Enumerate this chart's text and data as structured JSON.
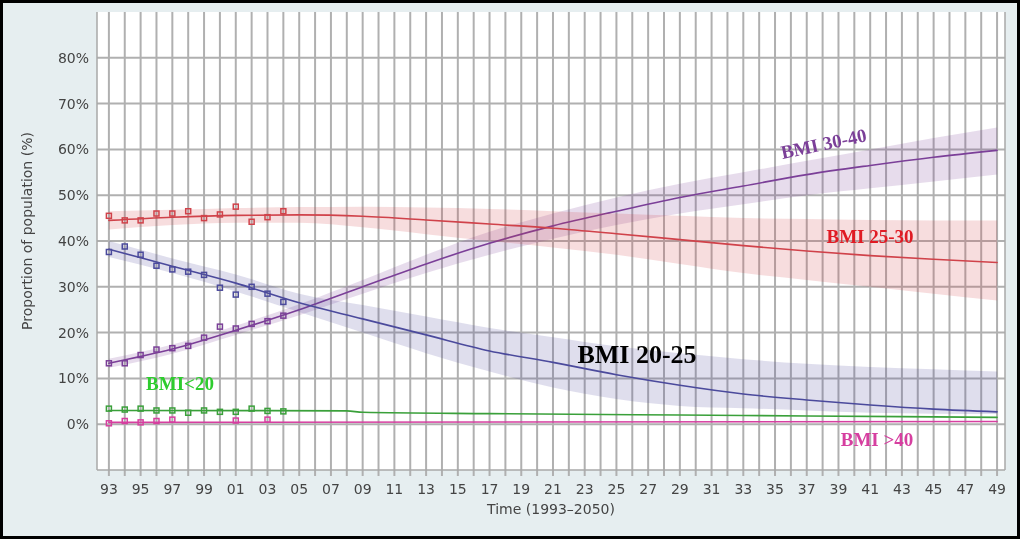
{
  "chart_data": {
    "type": "line",
    "xlabel": "Time (1993–2050)",
    "ylabel": "Proportion of population (%)",
    "xlim": [
      1992.25,
      2049.5
    ],
    "ylim": [
      -10,
      90
    ],
    "xticks": [
      {
        "value": 1993,
        "label": "93"
      },
      {
        "value": 1994,
        "label": null
      },
      {
        "value": 1995,
        "label": "95"
      },
      {
        "value": 1996,
        "label": null
      },
      {
        "value": 1997,
        "label": "97"
      },
      {
        "value": 1998,
        "label": null
      },
      {
        "value": 1999,
        "label": "99"
      },
      {
        "value": 2000,
        "label": null
      },
      {
        "value": 2001,
        "label": "01"
      },
      {
        "value": 2002,
        "label": null
      },
      {
        "value": 2003,
        "label": "03"
      },
      {
        "value": 2004,
        "label": null
      },
      {
        "value": 2005,
        "label": "05"
      },
      {
        "value": 2006,
        "label": null
      },
      {
        "value": 2007,
        "label": "07"
      },
      {
        "value": 2008,
        "label": null
      },
      {
        "value": 2009,
        "label": "09"
      },
      {
        "value": 2010,
        "label": null
      },
      {
        "value": 2011,
        "label": "11"
      },
      {
        "value": 2012,
        "label": null
      },
      {
        "value": 2013,
        "label": "13"
      },
      {
        "value": 2014,
        "label": null
      },
      {
        "value": 2015,
        "label": "15"
      },
      {
        "value": 2016,
        "label": null
      },
      {
        "value": 2017,
        "label": "17"
      },
      {
        "value": 2018,
        "label": null
      },
      {
        "value": 2019,
        "label": "19"
      },
      {
        "value": 2020,
        "label": null
      },
      {
        "value": 2021,
        "label": "21"
      },
      {
        "value": 2022,
        "label": null
      },
      {
        "value": 2023,
        "label": "23"
      },
      {
        "value": 2024,
        "label": null
      },
      {
        "value": 2025,
        "label": "25"
      },
      {
        "value": 2026,
        "label": null
      },
      {
        "value": 2027,
        "label": "27"
      },
      {
        "value": 2028,
        "label": null
      },
      {
        "value": 2029,
        "label": "29"
      },
      {
        "value": 2030,
        "label": null
      },
      {
        "value": 2031,
        "label": "31"
      },
      {
        "value": 2032,
        "label": null
      },
      {
        "value": 2033,
        "label": "33"
      },
      {
        "value": 2034,
        "label": null
      },
      {
        "value": 2035,
        "label": "35"
      },
      {
        "value": 2036,
        "label": null
      },
      {
        "value": 2037,
        "label": "37"
      },
      {
        "value": 2038,
        "label": null
      },
      {
        "value": 2039,
        "label": "39"
      },
      {
        "value": 2040,
        "label": null
      },
      {
        "value": 2041,
        "label": "41"
      },
      {
        "value": 2042,
        "label": null
      },
      {
        "value": 2043,
        "label": "43"
      },
      {
        "value": 2044,
        "label": null
      },
      {
        "value": 2045,
        "label": "45"
      },
      {
        "value": 2046,
        "label": null
      },
      {
        "value": 2047,
        "label": "47"
      },
      {
        "value": 2048,
        "label": null
      },
      {
        "value": 2049,
        "label": "49"
      }
    ],
    "yticks": [
      {
        "value": 0,
        "label": "0%"
      },
      {
        "value": 10,
        "label": "10%"
      },
      {
        "value": 20,
        "label": "20%"
      },
      {
        "value": 30,
        "label": "30%"
      },
      {
        "value": 40,
        "label": "40%"
      },
      {
        "value": 50,
        "label": "50%"
      },
      {
        "value": 60,
        "label": "60%"
      },
      {
        "value": 70,
        "label": "70%"
      },
      {
        "value": 80,
        "label": "80%"
      }
    ],
    "grid": true,
    "marker": "none",
    "line_style": "solid",
    "series": [
      {
        "name": "BMI 30-40",
        "color": "#7b3f98",
        "x": [
          1993,
          1997,
          2001,
          2005,
          2009,
          2013,
          2017,
          2021,
          2025,
          2029,
          2033,
          2037,
          2041,
          2045,
          2049
        ],
        "values": [
          13.3,
          16.4,
          20.5,
          25,
          30,
          35,
          39.5,
          43.3,
          46.5,
          49.5,
          52,
          54.5,
          56.5,
          58.3,
          59.8
        ],
        "lower": [
          12.3,
          15.4,
          19.5,
          23.8,
          28.5,
          33,
          37,
          40.5,
          43.5,
          46,
          48,
          50,
          51.5,
          53,
          54.5
        ],
        "upper": [
          14.3,
          17.4,
          21.5,
          26.2,
          31.5,
          37,
          42,
          46,
          49.5,
          52.5,
          55,
          57.5,
          60,
          62.5,
          64.8
        ]
      },
      {
        "name": "BMI 25-30",
        "color": "#d0424a",
        "x": [
          1993,
          1997,
          2001,
          2005,
          2009,
          2013,
          2017,
          2021,
          2025,
          2029,
          2033,
          2037,
          2041,
          2045,
          2049
        ],
        "values": [
          44.5,
          45.2,
          45.6,
          45.7,
          45.4,
          44.6,
          43.7,
          42.8,
          41.6,
          40.3,
          39,
          37.8,
          36.8,
          36,
          35.3
        ],
        "lower": [
          42.5,
          43.5,
          44,
          44,
          43,
          41.5,
          40,
          38.6,
          37,
          35,
          33,
          31.5,
          30,
          28.5,
          27
        ],
        "upper": [
          46.5,
          46.8,
          47.2,
          47.4,
          47.5,
          47.3,
          47,
          46.5,
          46,
          45.5,
          45,
          44.8,
          44.6,
          44.5,
          44.5
        ]
      },
      {
        "name": "BMI 20-25",
        "color": "#4b4a9c",
        "x": [
          1993,
          1997,
          2001,
          2005,
          2009,
          2013,
          2017,
          2021,
          2025,
          2029,
          2033,
          2037,
          2041,
          2045,
          2049
        ],
        "values": [
          38.2,
          34.5,
          30.8,
          26.5,
          23,
          19.5,
          16,
          13.5,
          10.8,
          8.5,
          6.6,
          5.3,
          4.2,
          3.3,
          2.7
        ],
        "lower": [
          36.5,
          33,
          29,
          24.5,
          20,
          15.5,
          11.5,
          8,
          5.5,
          4,
          3.5,
          3,
          2.5,
          2.3,
          2.2
        ],
        "upper": [
          40,
          36.2,
          32.7,
          28.5,
          26,
          23.5,
          21,
          19,
          17,
          15.5,
          14.2,
          13.2,
          12.5,
          12,
          11.5
        ]
      },
      {
        "name": "BMI<20",
        "color": "#3aa03a",
        "x": [
          1993,
          2008,
          2009,
          2017,
          2029,
          2037,
          2049
        ],
        "values": [
          3,
          2.9,
          2.6,
          2.3,
          2,
          1.8,
          1.5
        ]
      },
      {
        "name": "BMI >40",
        "color": "#d63fa0",
        "x": [
          1993,
          2049
        ],
        "values": [
          0.4,
          0.6
        ]
      },
      {
        "type": "scatter",
        "marker": "square",
        "color": "#7b3f98",
        "x": [
          1993,
          1994,
          1995,
          1996,
          1997,
          1998,
          1999,
          2000,
          2001,
          2002,
          2003,
          2004
        ],
        "values": [
          13.3,
          13.3,
          15.1,
          16.3,
          16.6,
          17.1,
          18.9,
          21.3,
          20.9,
          21.9,
          22.5,
          23.7
        ]
      },
      {
        "type": "scatter",
        "marker": "square",
        "color": "#d0424a",
        "x": [
          1993,
          1994,
          1995,
          1996,
          1997,
          1998,
          1999,
          2000,
          2001,
          2002,
          2003,
          2004
        ],
        "values": [
          45.5,
          44.5,
          44.5,
          46,
          46,
          46.5,
          45,
          45.8,
          47.5,
          44.2,
          45.2,
          46.5
        ]
      },
      {
        "type": "scatter",
        "marker": "square",
        "color": "#4b4a9c",
        "x": [
          1993,
          1994,
          1995,
          1996,
          1997,
          1998,
          1999,
          2000,
          2001,
          2002,
          2003,
          2004
        ],
        "values": [
          37.6,
          38.8,
          37,
          34.6,
          33.8,
          33.3,
          32.6,
          29.8,
          28.3,
          30,
          28.5,
          26.7
        ]
      },
      {
        "type": "scatter",
        "marker": "square",
        "color": "#3aa03a",
        "x": [
          1993,
          1994,
          1995,
          1996,
          1997,
          1998,
          1999,
          2000,
          2001,
          2002,
          2003,
          2004
        ],
        "values": [
          3.4,
          3.2,
          3.4,
          3,
          3,
          2.5,
          3,
          2.7,
          2.7,
          3.4,
          2.9,
          2.8
        ]
      },
      {
        "type": "scatter",
        "marker": "square",
        "color": "#d63fa0",
        "x": [
          1993,
          1994,
          1995,
          1996,
          1997,
          2001,
          2003
        ],
        "values": [
          0.2,
          0.7,
          0.4,
          0.7,
          1,
          0.8,
          1
        ]
      }
    ]
  }
}
